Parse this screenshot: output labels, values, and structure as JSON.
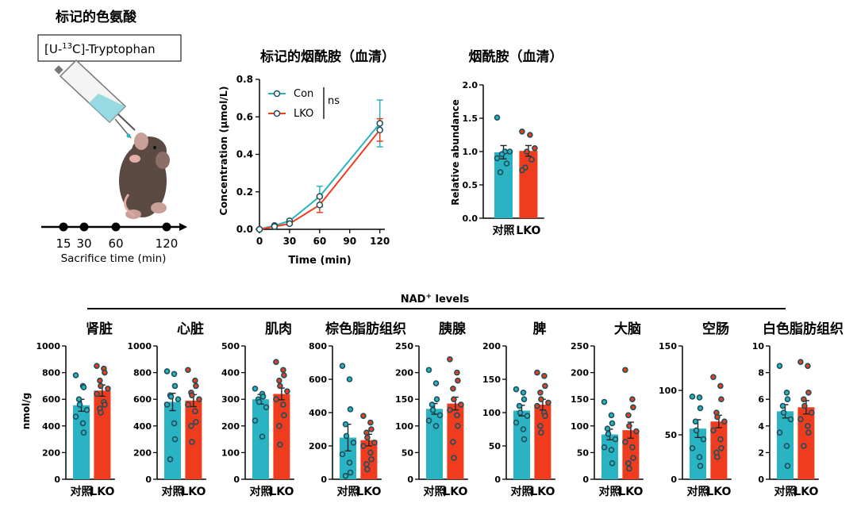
{
  "colors": {
    "con": "#2AB3C2",
    "lko": "#F03C1E",
    "dot": "#1d4f5a",
    "axis": "#000000",
    "label_box": "#333333"
  },
  "experiment": {
    "title": "标记的色氨酸",
    "tracer_label": "[U-¹³C]-Tryptophan",
    "tracer_prefix": "[U-",
    "tracer_sup": "13",
    "tracer_suffix": "C]-Tryptophan",
    "timeline_ticks": [
      "15",
      "30",
      "60",
      "120"
    ],
    "timeline_label": "Sacrifice time (min)",
    "illustration": "mouse-injection"
  },
  "chart_data": [
    {
      "id": "serum-labeled-nam",
      "type": "line",
      "title": "标记的烟酰胺（血清）",
      "xlabel": "Time (min)",
      "ylabel": "Concentration (μmol/L)",
      "xlim": [
        0,
        125
      ],
      "ylim": [
        0,
        0.8
      ],
      "xticks": [
        0,
        30,
        60,
        90,
        120
      ],
      "yticks": [
        0.0,
        0.2,
        0.4,
        0.6,
        0.8
      ],
      "ytick_labels": [
        "0.0",
        "0.2",
        "0.4",
        "0.6",
        "0.8"
      ],
      "significance": "ns",
      "series": [
        {
          "name": "Con",
          "x": [
            0,
            15,
            30,
            60,
            120
          ],
          "y": [
            0.0,
            0.02,
            0.045,
            0.175,
            0.565
          ],
          "err": [
            0,
            0.005,
            0.008,
            0.055,
            0.125
          ]
        },
        {
          "name": "LKO",
          "x": [
            0,
            15,
            30,
            60,
            120
          ],
          "y": [
            0.0,
            0.015,
            0.03,
            0.13,
            0.53
          ],
          "err": [
            0,
            0.004,
            0.006,
            0.04,
            0.06
          ]
        }
      ]
    },
    {
      "id": "serum-nam",
      "type": "bar",
      "title": "烟酰胺（血清）",
      "ylabel": "Relative abundance",
      "categories": [
        "对照",
        "LKO"
      ],
      "values": [
        0.99,
        1.01
      ],
      "errors": [
        0.1,
        0.08
      ],
      "ylim": [
        0,
        2.0
      ],
      "yticks": [
        0.0,
        0.5,
        1.0,
        1.5,
        2.0
      ],
      "ytick_labels": [
        "0.0",
        "0.5",
        "1.0",
        "1.5",
        "2.0"
      ],
      "points": [
        [
          1.51,
          1.0,
          0.82,
          0.69,
          0.96,
          1.0,
          0.9
        ],
        [
          1.3,
          1.25,
          0.88,
          0.76,
          1.0,
          1.05,
          0.72
        ]
      ]
    },
    {
      "id": "nad-levels",
      "type": "bar",
      "title": "NAD⁺ levels",
      "title_main": "NAD",
      "title_sup": "+",
      "title_suffix": " levels",
      "ylabel": "nmol/g",
      "categories": [
        "对照",
        "LKO"
      ],
      "panels": [
        {
          "tissue": "肾脏",
          "ymax": 1000,
          "yticks": [
            0,
            200,
            400,
            600,
            800,
            1000
          ],
          "means": [
            555,
            665
          ],
          "errors": [
            45,
            42
          ],
          "points": [
            [
              780,
              700,
              690,
              600,
              560,
              520,
              470,
              420,
              350
            ],
            [
              850,
              830,
              800,
              740,
              700,
              680,
              640,
              580,
              560,
              530,
              500
            ]
          ]
        },
        {
          "tissue": "心脏",
          "ymax": 1000,
          "yticks": [
            0,
            200,
            400,
            600,
            800,
            1000
          ],
          "means": [
            580,
            590
          ],
          "errors": [
            65,
            45
          ],
          "points": [
            [
              810,
              790,
              700,
              630,
              620,
              600,
              560,
              420,
              300,
              150
            ],
            [
              820,
              740,
              700,
              650,
              630,
              600,
              560,
              510,
              430,
              400,
              280
            ]
          ]
        },
        {
          "tissue": "肌肉",
          "ymax": 500,
          "yticks": [
            0,
            100,
            200,
            300,
            400,
            500
          ],
          "means": [
            300,
            320
          ],
          "errors": [
            18,
            22
          ],
          "points": [
            [
              340,
              320,
              310,
              300,
              290,
              270,
              220,
              160
            ],
            [
              440,
              410,
              390,
              370,
              350,
              330,
              300,
              280,
              240,
              200,
              130
            ]
          ]
        },
        {
          "tissue": "棕色脂肪组织",
          "ymax": 800,
          "yticks": [
            0,
            200,
            400,
            600,
            800
          ],
          "means": [
            250,
            235
          ],
          "errors": [
            80,
            35
          ],
          "points": [
            [
              680,
              600,
              420,
              330,
              260,
              220,
              150,
              100,
              40,
              20
            ],
            [
              380,
              340,
              300,
              280,
              250,
              220,
              200,
              160,
              120,
              90,
              60
            ]
          ]
        },
        {
          "tissue": "胰腺",
          "ymax": 250,
          "yticks": [
            0,
            50,
            100,
            150,
            200,
            250
          ],
          "means": [
            132,
            142
          ],
          "errors": [
            10,
            12
          ],
          "points": [
            [
              205,
              180,
              150,
              140,
              130,
              120,
              110,
              100
            ],
            [
              225,
              200,
              185,
              170,
              150,
              140,
              130,
              120,
              100,
              70,
              40
            ]
          ]
        },
        {
          "tissue": "脾",
          "ymax": 200,
          "yticks": [
            0,
            50,
            100,
            150,
            200
          ],
          "means": [
            103,
            112
          ],
          "errors": [
            8,
            8
          ],
          "points": [
            [
              135,
              130,
              120,
              110,
              100,
              95,
              85,
              75,
              60
            ],
            [
              160,
              155,
              140,
              130,
              120,
              115,
              110,
              100,
              95,
              80,
              70
            ]
          ]
        },
        {
          "tissue": "大脑",
          "ymax": 250,
          "yticks": [
            0,
            50,
            100,
            150,
            200,
            250
          ],
          "means": [
            84,
            92
          ],
          "errors": [
            10,
            15
          ],
          "points": [
            [
              145,
              120,
              105,
              95,
              85,
              75,
              60,
              55,
              30
            ],
            [
              205,
              150,
              135,
              120,
              100,
              90,
              70,
              60,
              40,
              30,
              20
            ]
          ]
        },
        {
          "tissue": "空肠",
          "ymax": 150,
          "yticks": [
            0,
            50,
            100,
            150
          ],
          "means": [
            57,
            65
          ],
          "errors": [
            10,
            7
          ],
          "points": [
            [
              93,
              92,
              80,
              65,
              55,
              45,
              35,
              25,
              15
            ],
            [
              115,
              105,
              90,
              75,
              70,
              65,
              55,
              45,
              35,
              30,
              25
            ]
          ]
        },
        {
          "tissue": "白色脂肪组织",
          "ymax": 10,
          "yticks": [
            0,
            2,
            4,
            6,
            8,
            10
          ],
          "means": [
            5.1,
            5.4
          ],
          "errors": [
            0.5,
            0.5
          ],
          "points": [
            [
              8.5,
              6.5,
              6.0,
              5.5,
              5.0,
              4.5,
              3.5,
              2.5,
              1.0
            ],
            [
              8.8,
              8.5,
              6.5,
              6.0,
              5.5,
              5.0,
              4.5,
              4.0,
              3.5,
              2.5
            ]
          ]
        }
      ]
    }
  ]
}
